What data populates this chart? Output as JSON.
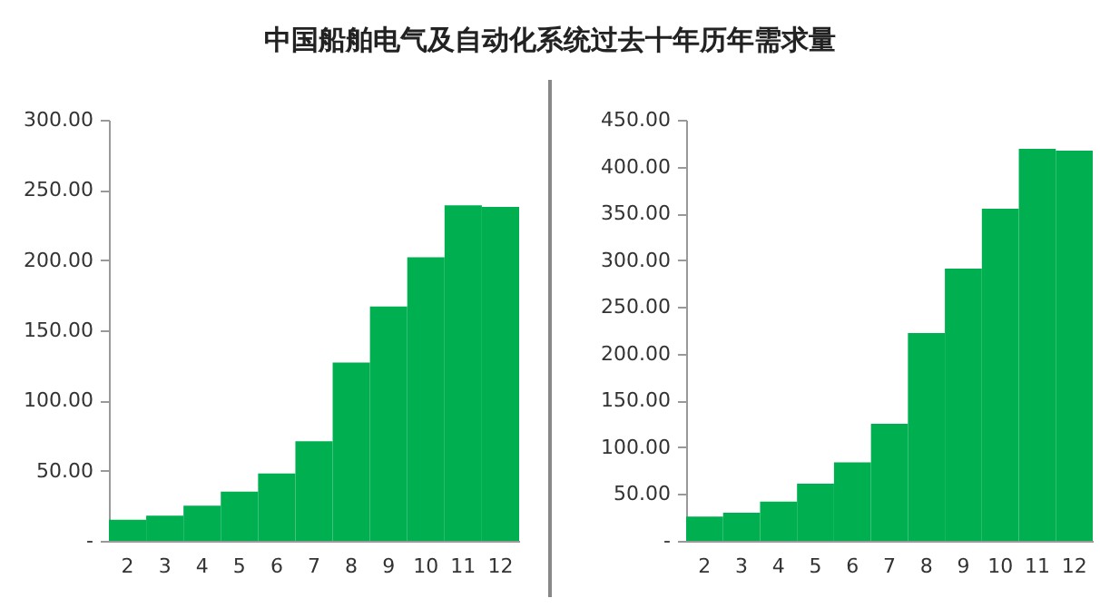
{
  "chart_data": [
    {
      "type": "bar",
      "title": "中国船舶电气及自动化系统过去十年历年需求量",
      "categories": [
        "2",
        "3",
        "4",
        "5",
        "6",
        "7",
        "8",
        "9",
        "10",
        "11",
        "12"
      ],
      "series": [
        {
          "color": "#00b050",
          "values": [
            15,
            18,
            25,
            35,
            48,
            71,
            127,
            167,
            202,
            239,
            238
          ]
        }
      ],
      "ylim": [
        0,
        300
      ],
      "yticks": [
        {
          "value": 0,
          "label": "-"
        },
        {
          "value": 50,
          "label": "50.00"
        },
        {
          "value": 100,
          "label": "100.00"
        },
        {
          "value": 150,
          "label": "150.00"
        },
        {
          "value": 200,
          "label": "200.00"
        },
        {
          "value": 250,
          "label": "250.00"
        },
        {
          "value": 300,
          "label": "300.00"
        }
      ],
      "grid": false
    },
    {
      "type": "bar",
      "categories": [
        "2",
        "3",
        "4",
        "5",
        "6",
        "7",
        "8",
        "9",
        "10",
        "11",
        "12"
      ],
      "series": [
        {
          "color": "#00b050",
          "values": [
            26,
            30,
            42,
            61,
            84,
            125,
            222,
            291,
            355,
            419,
            417
          ]
        }
      ],
      "ylim": [
        0,
        450
      ],
      "yticks": [
        {
          "value": 0,
          "label": "-"
        },
        {
          "value": 50,
          "label": "50.00"
        },
        {
          "value": 100,
          "label": "100.00"
        },
        {
          "value": 150,
          "label": "150.00"
        },
        {
          "value": 200,
          "label": "200.00"
        },
        {
          "value": 250,
          "label": "250.00"
        },
        {
          "value": 300,
          "label": "300.00"
        },
        {
          "value": 350,
          "label": "350.00"
        },
        {
          "value": 400,
          "label": "400.00"
        },
        {
          "value": 450,
          "label": "450.00"
        }
      ],
      "grid": false
    }
  ]
}
